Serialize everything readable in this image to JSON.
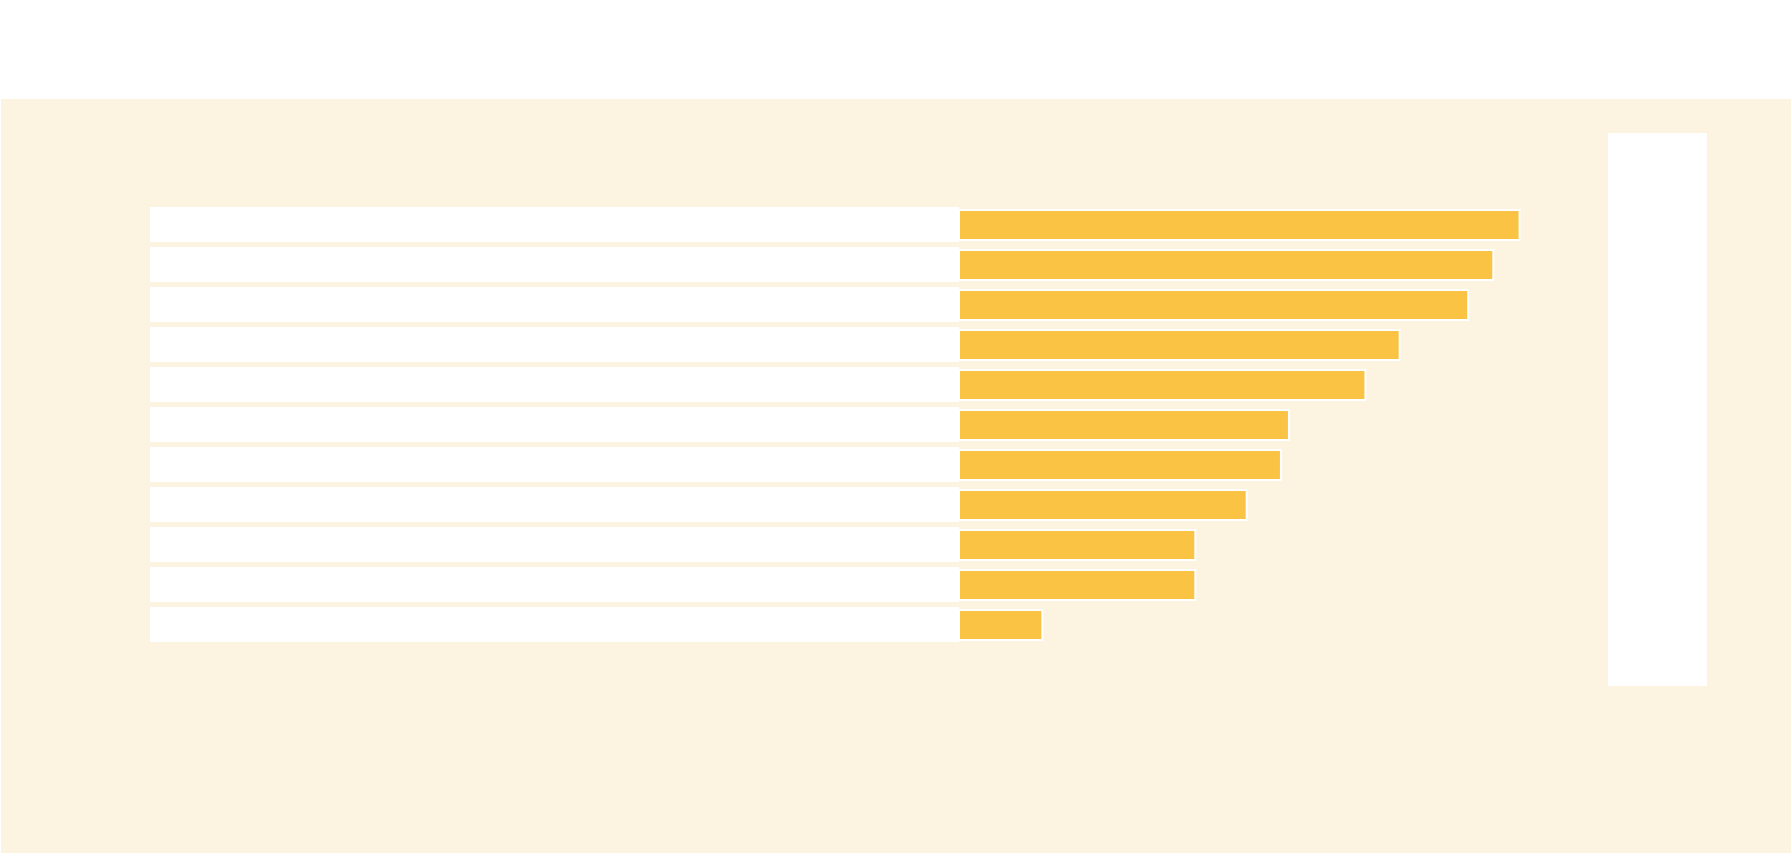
{
  "chart_data": {
    "type": "bar",
    "orientation": "horizontal",
    "categories": [
      null,
      null,
      null,
      null,
      null,
      null,
      null,
      null,
      null,
      null,
      null
    ],
    "values": [
      491,
      468,
      446,
      386,
      356,
      289,
      282,
      252,
      207,
      207,
      73
    ],
    "color": "#fbc343",
    "xlim": [
      0,
      600
    ]
  }
}
